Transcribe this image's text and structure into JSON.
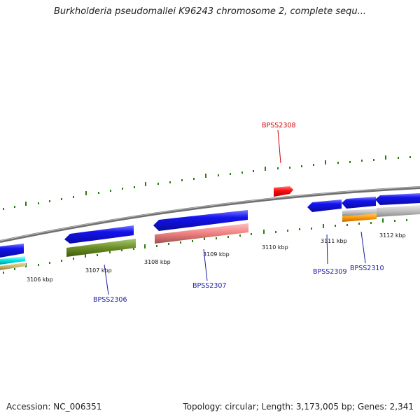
{
  "title": "Burkholderia pseudomallei K96243 chromosome 2, complete sequ...",
  "footer": {
    "accession": "Accession: NC_006351",
    "summary": "Topology: circular; Length: 3,173,005 bp; Genes: 2,341"
  },
  "colors": {
    "backbone": "#808080",
    "tick": "#2e7d0f",
    "gene_forward": "#1010e0",
    "gene_highlight": "#ff1010",
    "label_normal": "#1a1aaa",
    "label_highlight": "#cc0000"
  },
  "kbp_labels": [
    "3106 kbp",
    "3107 kbp",
    "3108 kbp",
    "3109 kbp",
    "3110 kbp",
    "3111 kbp",
    "3112 kbp"
  ],
  "gene_labels": [
    {
      "id": "BPSS2306",
      "highlight": false
    },
    {
      "id": "BPSS2307",
      "highlight": false
    },
    {
      "id": "BPSS2308",
      "highlight": true
    },
    {
      "id": "BPSS2309",
      "highlight": false
    },
    {
      "id": "BPSS2310",
      "highlight": false
    }
  ]
}
